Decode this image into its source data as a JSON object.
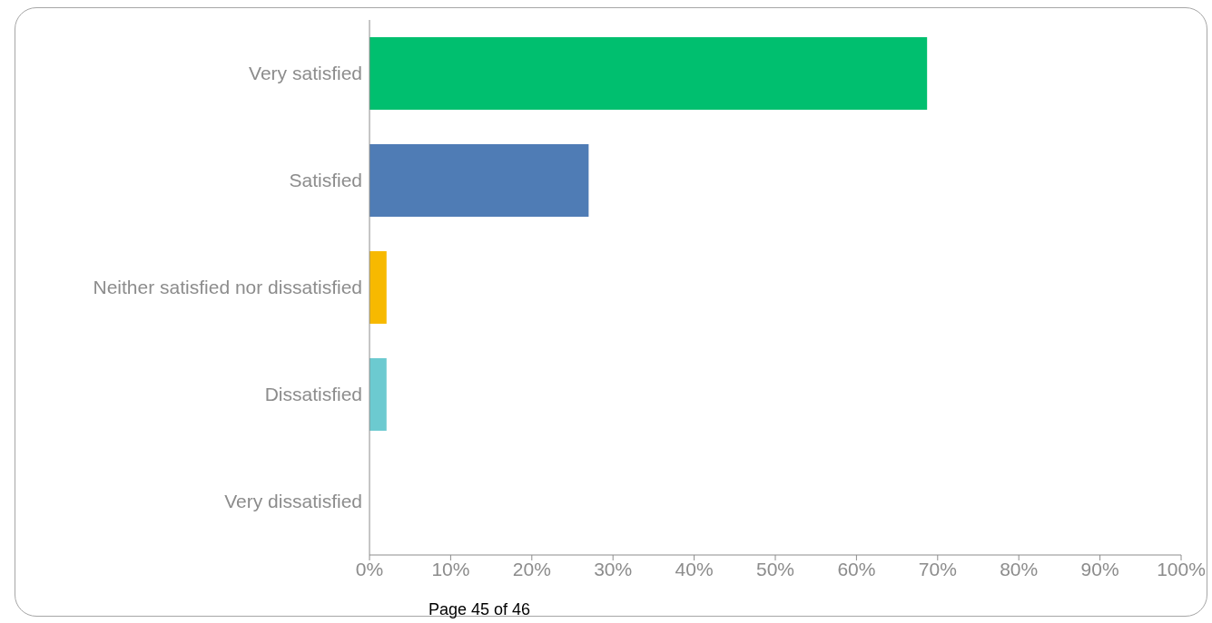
{
  "chart_data": {
    "type": "bar",
    "orientation": "horizontal",
    "categories": [
      "Very satisfied",
      "Satisfied",
      "Neither satisfied nor dissatisfied",
      "Dissatisfied",
      "Very dissatisfied"
    ],
    "values": [
      68.7,
      27.0,
      2.1,
      2.1,
      0
    ],
    "colors": [
      "#00bf6f",
      "#4f7cb5",
      "#f7b900",
      "#6ccad0",
      "#a0a0a0"
    ],
    "xlim": [
      0,
      100
    ],
    "xticks": [
      {
        "value": 0,
        "label": "0%"
      },
      {
        "value": 10,
        "label": "10%"
      },
      {
        "value": 20,
        "label": "20%"
      },
      {
        "value": 30,
        "label": "30%"
      },
      {
        "value": 40,
        "label": "40%"
      },
      {
        "value": 50,
        "label": "50%"
      },
      {
        "value": 60,
        "label": "60%"
      },
      {
        "value": 70,
        "label": "70%"
      },
      {
        "value": 80,
        "label": "80%"
      },
      {
        "value": 90,
        "label": "90%"
      },
      {
        "value": 100,
        "label": "100%"
      }
    ],
    "grid": false,
    "legend": false,
    "annotations": [
      "Page 45 of 46"
    ]
  }
}
